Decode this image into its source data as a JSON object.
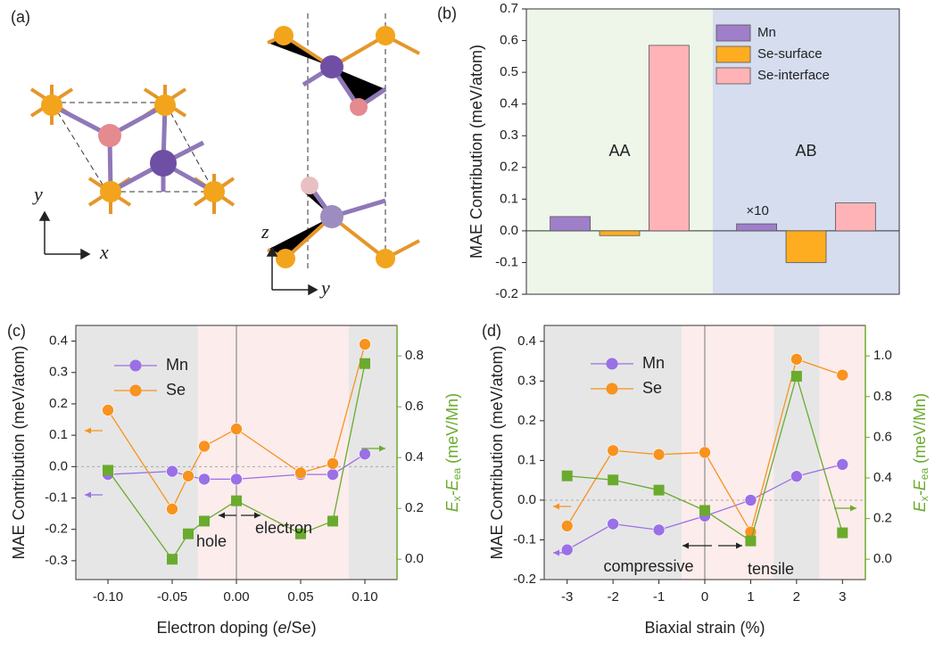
{
  "structure": {
    "panel": "(a)",
    "top_view_axes": [
      "x",
      "y"
    ],
    "side_view_axes": [
      "y",
      "z"
    ]
  },
  "chart_data": [
    {
      "type": "bar",
      "panel": "(b)",
      "y_label": "MAE Contribution (meV/atom)",
      "categories": [
        "AA",
        "AB"
      ],
      "annotation": "×10",
      "backgrounds": [
        "#eef5e9",
        "#d5ddef"
      ],
      "series": [
        {
          "name": "Mn",
          "color": "#9f7fc9",
          "values": [
            0.045,
            0.022
          ]
        },
        {
          "name": "Se-surface",
          "color": "#ffad20",
          "values": [
            -0.015,
            -0.1
          ]
        },
        {
          "name": "Se-interface",
          "color": "#ffb3b6",
          "values": [
            0.585,
            0.088
          ]
        }
      ],
      "ylim": [
        -0.2,
        0.7
      ],
      "yticks": [
        -0.2,
        -0.1,
        {
          "value": 0,
          "label": "0.0"
        },
        0.1,
        0.2,
        0.3,
        0.4,
        0.5,
        0.6,
        0.7
      ],
      "legend": "upper right"
    },
    {
      "type": "line",
      "panel": "(c)",
      "x_label": [
        "Electron doping (",
        "e",
        "/Se)"
      ],
      "y_label": "MAE Contribution (meV/atom)",
      "y2_label": [
        "E",
        "x",
        "-E",
        "ea",
        " (meV/Mn)"
      ],
      "x": [
        -0.1,
        -0.05,
        -0.0375,
        -0.025,
        0,
        0.05,
        0.075,
        0.1
      ],
      "series": [
        {
          "name": "Mn",
          "color": "#9b6fe6",
          "marker": "ball",
          "values": [
            -0.025,
            -0.015,
            -0.03,
            -0.04,
            -0.04,
            -0.025,
            -0.025,
            0.04
          ]
        },
        {
          "name": "Se",
          "color": "#f7931e",
          "marker": "ball",
          "values": [
            0.18,
            -0.135,
            -0.03,
            0.065,
            0.12,
            -0.02,
            0.01,
            0.39
          ]
        },
        {
          "color": "#6aab2e",
          "marker": "square",
          "axis": "y2",
          "values": [
            0.35,
            0.0,
            0.1,
            0.15,
            0.23,
            0.1,
            0.15,
            0.77
          ]
        }
      ],
      "regions": [
        {
          "from": -0.125,
          "to": -0.03,
          "color": "#e6e6e6"
        },
        {
          "from": -0.03,
          "to": 0.0875,
          "color": "#fcecec"
        },
        {
          "from": 0.0875,
          "to": 0.125,
          "color": "#e6e6e6"
        }
      ],
      "annotations": [
        "hole",
        "electron"
      ],
      "xlim": [
        -0.125,
        0.125
      ],
      "xticks": [
        {
          "value": -0.1,
          "label": "-0.10"
        },
        -0.05,
        {
          "value": 0,
          "label": "0.00"
        },
        0.05,
        {
          "value": 0.1,
          "label": "0.10"
        }
      ],
      "ylim": [
        -0.36,
        0.45
      ],
      "yticks": [
        -0.3,
        -0.2,
        -0.1,
        {
          "value": 0,
          "label": "0.0"
        },
        0.1,
        0.2,
        0.3,
        0.4
      ],
      "y2lim": [
        -0.08,
        0.92
      ],
      "y2ticks": [
        {
          "value": 0,
          "label": "0.0"
        },
        0.2,
        0.4,
        0.6,
        0.8
      ],
      "legend": "upper left"
    },
    {
      "type": "line",
      "panel": "(d)",
      "x_label": [
        "Biaxial strain (%)"
      ],
      "y_label": "MAE Contribution (meV/atom)",
      "y2_label": [
        "E",
        "x",
        "-E",
        "ea",
        " (meV/Mn)"
      ],
      "x": [
        -3,
        -2,
        -1,
        0,
        1,
        2,
        3
      ],
      "series": [
        {
          "name": "Mn",
          "color": "#9b6fe6",
          "marker": "ball",
          "values": [
            -0.125,
            -0.06,
            -0.075,
            -0.04,
            0.0,
            0.06,
            0.09
          ]
        },
        {
          "name": "Se",
          "color": "#f7931e",
          "marker": "ball",
          "values": [
            -0.065,
            0.125,
            0.115,
            0.12,
            -0.08,
            0.355,
            0.315
          ]
        },
        {
          "color": "#6aab2e",
          "marker": "square",
          "axis": "y2",
          "values": [
            0.41,
            0.39,
            0.34,
            0.24,
            0.09,
            0.9,
            0.13
          ]
        }
      ],
      "regions": [
        {
          "from": -3.5,
          "to": -0.5,
          "color": "#e6e6e6"
        },
        {
          "from": -0.5,
          "to": 1.5,
          "color": "#fcecec"
        },
        {
          "from": 1.5,
          "to": 2.5,
          "color": "#e6e6e6"
        },
        {
          "from": 2.5,
          "to": 3.5,
          "color": "#fcecec"
        }
      ],
      "annotations": [
        "compressive",
        "tensile"
      ],
      "xlim": [
        -3.5,
        3.5
      ],
      "xticks": [
        -3,
        -2,
        -1,
        0,
        1,
        2,
        3
      ],
      "ylim": [
        -0.2,
        0.44
      ],
      "yticks": [
        -0.2,
        -0.1,
        {
          "value": 0,
          "label": "0.0"
        },
        0.1,
        0.2,
        0.3,
        0.4
      ],
      "y2lim": [
        -0.1,
        1.15
      ],
      "y2ticks": [
        {
          "value": 0,
          "label": "0.0"
        },
        0.2,
        0.4,
        0.6,
        0.8,
        {
          "value": 1,
          "label": "1.0"
        }
      ],
      "legend": "upper left"
    }
  ]
}
